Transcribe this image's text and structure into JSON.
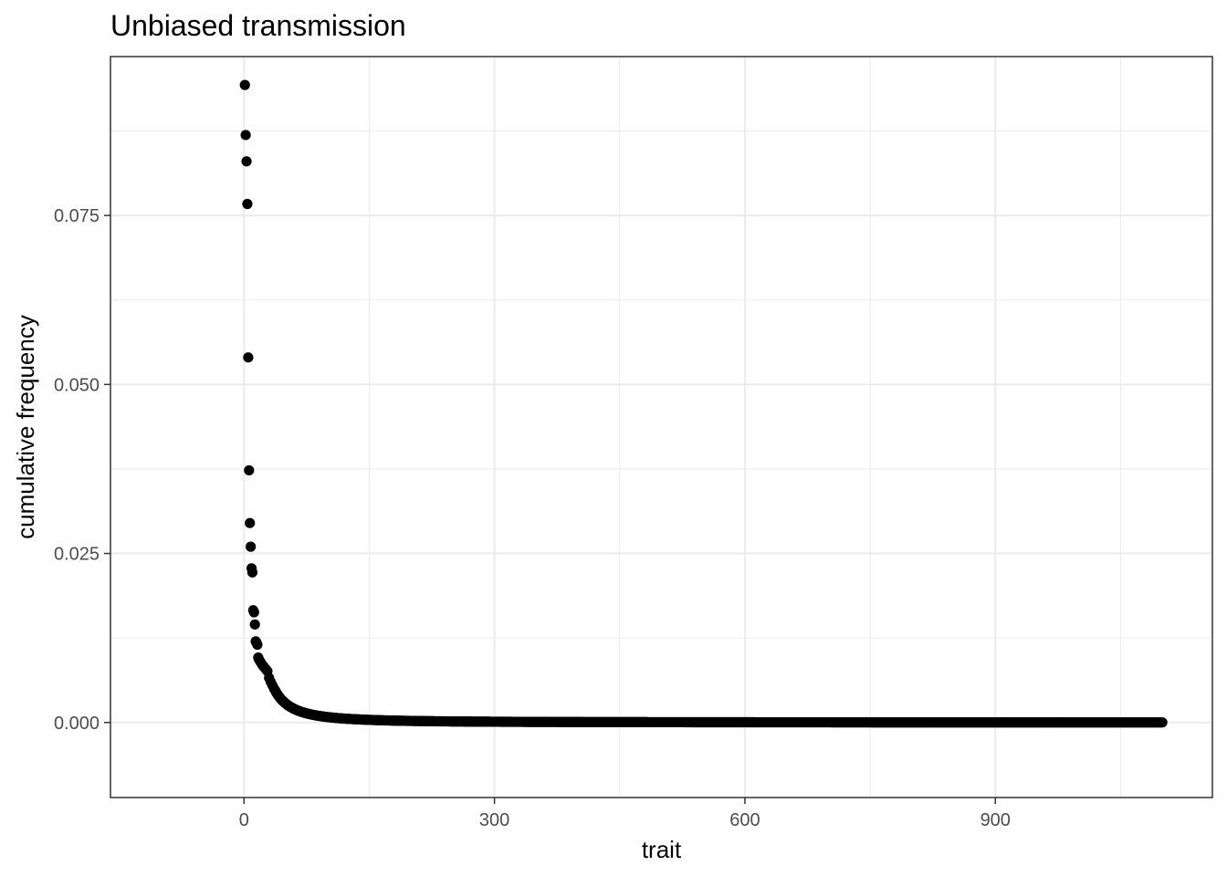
{
  "chart_data": {
    "type": "scatter",
    "title": "Unbiased transmission",
    "xlabel": "trait",
    "ylabel": "cumulative frequency",
    "xlim": [
      -160,
      1160
    ],
    "ylim": [
      -0.0111,
      0.0985
    ],
    "x_ticks": [
      0,
      300,
      600,
      900
    ],
    "x_tick_labels": [
      "0",
      "300",
      "600",
      "900"
    ],
    "x_minor": [
      150,
      450,
      750,
      1050
    ],
    "y_ticks": [
      0,
      0.025,
      0.05,
      0.075
    ],
    "y_tick_labels": [
      "0.000",
      "0.025",
      "0.050",
      "0.075"
    ],
    "y_minor": [
      0.0125,
      0.0375,
      0.0625,
      0.0875
    ],
    "grid": true,
    "legend": "none",
    "point_color": "#000000",
    "head_points": [
      {
        "x": 1,
        "y": 0.0943
      },
      {
        "x": 2,
        "y": 0.0869
      },
      {
        "x": 3,
        "y": 0.083
      },
      {
        "x": 4,
        "y": 0.0767
      },
      {
        "x": 5,
        "y": 0.054
      },
      {
        "x": 6,
        "y": 0.0373
      },
      {
        "x": 7,
        "y": 0.0295
      },
      {
        "x": 8,
        "y": 0.026
      },
      {
        "x": 9,
        "y": 0.0228
      },
      {
        "x": 10,
        "y": 0.0222
      },
      {
        "x": 11,
        "y": 0.0166
      },
      {
        "x": 12,
        "y": 0.0163
      },
      {
        "x": 13,
        "y": 0.0145
      },
      {
        "x": 14,
        "y": 0.012
      },
      {
        "x": 15,
        "y": 0.0118
      },
      {
        "x": 16,
        "y": 0.0115
      },
      {
        "x": 17,
        "y": 0.0096
      },
      {
        "x": 18,
        "y": 0.0093
      },
      {
        "x": 20,
        "y": 0.0089
      },
      {
        "x": 22,
        "y": 0.0085
      },
      {
        "x": 24,
        "y": 0.0082
      },
      {
        "x": 26,
        "y": 0.0079
      },
      {
        "x": 28,
        "y": 0.0076
      },
      {
        "x": 30,
        "y": 0.0066
      },
      {
        "x": 32,
        "y": 0.006
      },
      {
        "x": 34,
        "y": 0.0055
      },
      {
        "x": 36,
        "y": 0.005
      }
    ],
    "tail": {
      "x_start": 37,
      "x_end": 1100,
      "y_at_start": 0.0048,
      "decay": 1.8
    },
    "point_count": 1100
  }
}
